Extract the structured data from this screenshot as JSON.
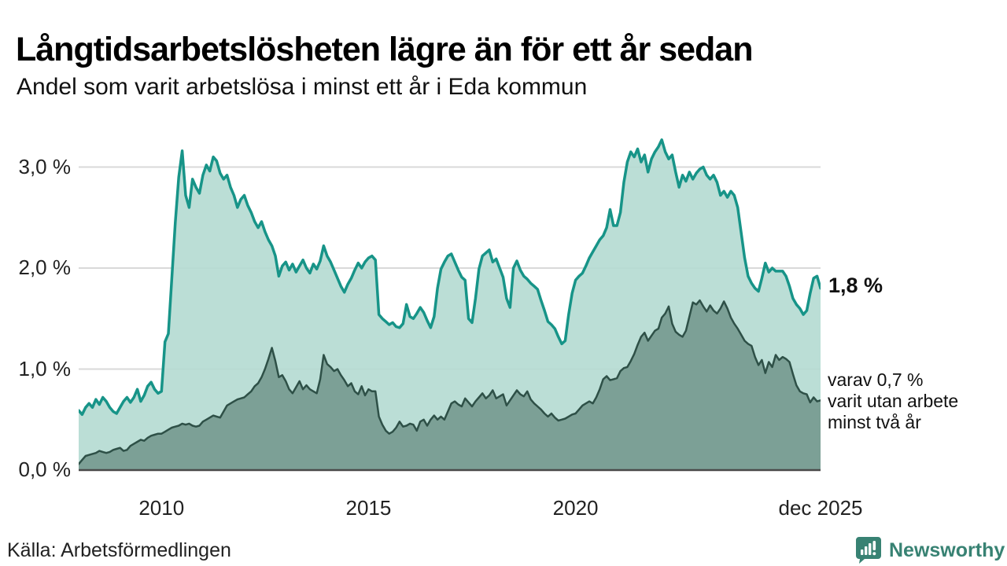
{
  "header": {
    "title": "Långtidsarbetslösheten lägre än för ett år sedan",
    "subtitle": "Andel som varit arbetslösa i minst ett år i Eda kommun"
  },
  "chart_data": {
    "type": "area",
    "title": "Långtidsarbetslösheten lägre än för ett år sedan",
    "subtitle": "Andel som varit arbetslösa i minst ett år i Eda kommun",
    "x_start": "jan 2008",
    "x_end": "dec 2025",
    "x_frequency": "monthly",
    "ylim": [
      0,
      3.4
    ],
    "grid": true,
    "y_ticks": [
      {
        "label": "0,0 %",
        "value": 0
      },
      {
        "label": "1,0 %",
        "value": 1
      },
      {
        "label": "2,0 %",
        "value": 2
      },
      {
        "label": "3,0 %",
        "value": 3
      }
    ],
    "x_ticks": [
      {
        "label": "2010",
        "month_index": 24
      },
      {
        "label": "2015",
        "month_index": 84
      },
      {
        "label": "2020",
        "month_index": 144
      },
      {
        "label": "dec 2025",
        "month_index": 215
      }
    ],
    "colors": {
      "grid": "#d9d9d9",
      "axis": "#4a4a4a"
    },
    "annotations": {
      "primary": "1,8 %",
      "secondary_lines": [
        "varav 0,7 %",
        "varit utan arbete",
        "minst två år"
      ]
    },
    "series": [
      {
        "name": "Arbetslösa minst ett år",
        "end_value_label": "1,8 %",
        "line_color": "#179488",
        "fill_color": "#b5dbd3",
        "line_width": 3.5,
        "values": [
          0.59,
          0.55,
          0.62,
          0.66,
          0.62,
          0.7,
          0.65,
          0.72,
          0.68,
          0.62,
          0.58,
          0.56,
          0.62,
          0.68,
          0.72,
          0.67,
          0.72,
          0.8,
          0.68,
          0.74,
          0.83,
          0.87,
          0.8,
          0.76,
          0.78,
          1.27,
          1.35,
          1.9,
          2.45,
          2.9,
          3.16,
          2.72,
          2.6,
          2.88,
          2.8,
          2.74,
          2.92,
          3.02,
          2.96,
          3.1,
          3.06,
          2.94,
          2.88,
          2.92,
          2.8,
          2.72,
          2.6,
          2.68,
          2.72,
          2.62,
          2.55,
          2.46,
          2.4,
          2.46,
          2.36,
          2.28,
          2.22,
          2.12,
          1.92,
          2.02,
          2.06,
          1.98,
          2.04,
          1.96,
          2.02,
          2.08,
          2.0,
          1.95,
          2.04,
          1.99,
          2.07,
          2.22,
          2.12,
          2.06,
          1.98,
          1.9,
          1.82,
          1.76,
          1.84,
          1.9,
          1.98,
          2.05,
          2.0,
          2.06,
          2.1,
          2.12,
          2.08,
          1.54,
          1.5,
          1.47,
          1.44,
          1.46,
          1.42,
          1.41,
          1.45,
          1.64,
          1.52,
          1.5,
          1.55,
          1.61,
          1.56,
          1.48,
          1.41,
          1.52,
          1.8,
          1.99,
          2.06,
          2.12,
          2.14,
          2.06,
          1.98,
          1.91,
          1.88,
          1.5,
          1.46,
          1.7,
          1.99,
          2.12,
          2.15,
          2.18,
          2.06,
          2.09,
          2.0,
          1.91,
          1.7,
          1.61,
          2.0,
          2.07,
          1.98,
          1.92,
          1.89,
          1.85,
          1.82,
          1.79,
          1.68,
          1.58,
          1.47,
          1.44,
          1.4,
          1.32,
          1.25,
          1.28,
          1.54,
          1.75,
          1.88,
          1.92,
          1.95,
          2.02,
          2.1,
          2.16,
          2.22,
          2.28,
          2.32,
          2.4,
          2.58,
          2.42,
          2.42,
          2.55,
          2.85,
          3.05,
          3.15,
          3.1,
          3.18,
          3.05,
          3.12,
          2.95,
          3.08,
          3.15,
          3.2,
          3.27,
          3.15,
          3.08,
          3.12,
          2.95,
          2.8,
          2.92,
          2.86,
          2.95,
          2.88,
          2.94,
          2.98,
          3.0,
          2.92,
          2.88,
          2.92,
          2.85,
          2.72,
          2.76,
          2.7,
          2.76,
          2.72,
          2.6,
          2.35,
          2.1,
          1.92,
          1.85,
          1.8,
          1.77,
          1.9,
          2.05,
          1.96,
          2.0,
          1.97,
          1.97,
          1.97,
          1.92,
          1.82,
          1.7,
          1.64,
          1.6,
          1.54,
          1.58,
          1.75,
          1.9,
          1.92,
          1.8
        ]
      },
      {
        "name": "Arbetslösa minst två år",
        "end_value_label": "0,7 %",
        "line_color": "#2e5047",
        "fill_color": "#7ca096",
        "line_width": 2.5,
        "values": [
          0.06,
          0.1,
          0.14,
          0.15,
          0.16,
          0.17,
          0.19,
          0.18,
          0.17,
          0.18,
          0.2,
          0.21,
          0.22,
          0.19,
          0.2,
          0.24,
          0.26,
          0.28,
          0.3,
          0.29,
          0.32,
          0.34,
          0.35,
          0.36,
          0.36,
          0.38,
          0.4,
          0.42,
          0.43,
          0.44,
          0.46,
          0.45,
          0.46,
          0.44,
          0.43,
          0.44,
          0.48,
          0.5,
          0.52,
          0.54,
          0.53,
          0.52,
          0.58,
          0.64,
          0.66,
          0.68,
          0.7,
          0.71,
          0.72,
          0.75,
          0.78,
          0.83,
          0.86,
          0.92,
          1.0,
          1.1,
          1.21,
          1.08,
          0.92,
          0.94,
          0.88,
          0.8,
          0.76,
          0.82,
          0.88,
          0.8,
          0.84,
          0.8,
          0.78,
          0.76,
          0.9,
          1.14,
          1.05,
          1.02,
          0.98,
          1.0,
          0.94,
          0.89,
          0.83,
          0.86,
          0.78,
          0.75,
          0.83,
          0.74,
          0.8,
          0.78,
          0.78,
          0.53,
          0.45,
          0.39,
          0.36,
          0.38,
          0.42,
          0.48,
          0.43,
          0.44,
          0.46,
          0.45,
          0.39,
          0.48,
          0.5,
          0.44,
          0.5,
          0.54,
          0.5,
          0.53,
          0.5,
          0.58,
          0.66,
          0.68,
          0.65,
          0.63,
          0.71,
          0.67,
          0.63,
          0.68,
          0.72,
          0.76,
          0.71,
          0.74,
          0.79,
          0.71,
          0.73,
          0.75,
          0.64,
          0.69,
          0.74,
          0.79,
          0.75,
          0.73,
          0.78,
          0.7,
          0.66,
          0.63,
          0.6,
          0.56,
          0.53,
          0.56,
          0.52,
          0.49,
          0.5,
          0.51,
          0.53,
          0.55,
          0.56,
          0.6,
          0.64,
          0.66,
          0.68,
          0.66,
          0.72,
          0.8,
          0.9,
          0.93,
          0.89,
          0.9,
          0.91,
          0.98,
          1.01,
          1.02,
          1.08,
          1.15,
          1.24,
          1.32,
          1.36,
          1.28,
          1.33,
          1.38,
          1.4,
          1.51,
          1.55,
          1.62,
          1.45,
          1.37,
          1.34,
          1.32,
          1.38,
          1.52,
          1.66,
          1.64,
          1.68,
          1.62,
          1.57,
          1.63,
          1.58,
          1.55,
          1.6,
          1.67,
          1.6,
          1.51,
          1.45,
          1.4,
          1.34,
          1.28,
          1.25,
          1.23,
          1.12,
          1.04,
          1.09,
          0.96,
          1.07,
          1.02,
          1.14,
          1.09,
          1.12,
          1.1,
          1.07,
          0.95,
          0.84,
          0.78,
          0.76,
          0.75,
          0.67,
          0.72,
          0.68,
          0.69
        ]
      }
    ]
  },
  "footer": {
    "source": "Källa: Arbetsförmedlingen",
    "brand": "Newsworthy",
    "brand_color": "#388273"
  }
}
